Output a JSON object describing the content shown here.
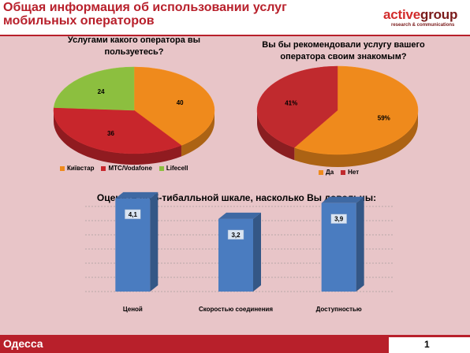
{
  "header": {
    "title": "Общая информация об использовании услуг мобильных операторов",
    "logo_main_1": "active",
    "logo_main_2": "group",
    "logo_sub": "research & communications"
  },
  "colors": {
    "kyivstar": "#ef8a1c",
    "mts": "#c8262c",
    "lifecell": "#8cbf3f",
    "yes": "#ef8a1c",
    "no": "#c02a2e",
    "bar": "#4a7cc0",
    "background": "#e8c5c8",
    "brand": "#b8202b"
  },
  "chart_data": [
    {
      "type": "pie",
      "title": "Услугами какого оператора вы пользуетесь?",
      "categories": [
        "Київстар",
        "МТС/Vodafone",
        "Lifecell"
      ],
      "values": [
        40,
        36,
        24
      ],
      "labels": [
        "40",
        "36",
        "24"
      ],
      "legend": "bottom"
    },
    {
      "type": "pie",
      "title": "Вы бы рекомендовали услугу вашего оператора своим знакомым?",
      "categories": [
        "Да",
        "Нет"
      ],
      "values": [
        59,
        41
      ],
      "labels": [
        "59%",
        "41%"
      ],
      "legend": "bottom"
    },
    {
      "type": "bar",
      "title": "Оцените по 5-тибалльной шкале, насколько Вы довольны:",
      "categories": [
        "Ценой",
        "Скоростью соединения",
        "Доступностью"
      ],
      "values": [
        4.1,
        3.2,
        3.9
      ],
      "labels": [
        "4,1",
        "3,2",
        "3,9"
      ],
      "ylim": [
        0,
        5
      ],
      "grid": true
    }
  ],
  "footer": {
    "city": "Одесса",
    "page": "1"
  }
}
